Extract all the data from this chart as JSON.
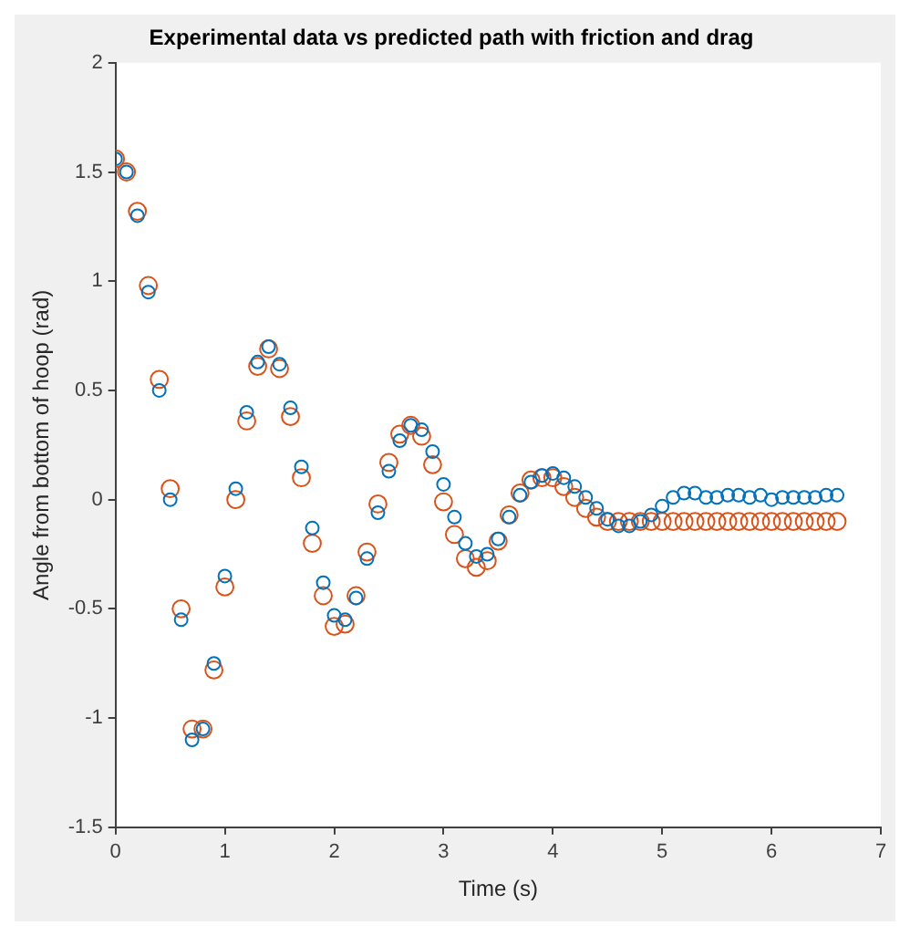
{
  "chart_data": {
    "type": "scatter",
    "title": "Experimental data vs predicted path with friction and drag",
    "xlabel": "Time (s)",
    "ylabel": "Angle from bottom of hoop (rad)",
    "x": [
      0,
      0.1,
      0.2,
      0.3,
      0.4,
      0.5,
      0.6,
      0.7,
      0.8,
      0.9,
      1.0,
      1.1,
      1.2,
      1.3,
      1.4,
      1.5,
      1.6,
      1.7,
      1.8,
      1.9,
      2.0,
      2.1,
      2.2,
      2.3,
      2.4,
      2.5,
      2.6,
      2.7,
      2.8,
      2.9,
      3.0,
      3.1,
      3.2,
      3.3,
      3.4,
      3.5,
      3.6,
      3.7,
      3.8,
      3.9,
      4.0,
      4.1,
      4.2,
      4.3,
      4.4,
      4.5,
      4.6,
      4.7,
      4.8,
      4.9,
      5.0,
      5.1,
      5.2,
      5.3,
      5.4,
      5.5,
      5.6,
      5.7,
      5.8,
      5.9,
      6.0,
      6.1,
      6.2,
      6.3,
      6.4,
      6.5,
      6.6
    ],
    "series": [
      {
        "color": "#0072bd",
        "values": [
          1.56,
          1.5,
          1.3,
          0.95,
          0.5,
          0.0,
          -0.55,
          -1.1,
          -1.05,
          -0.75,
          -0.35,
          0.05,
          0.4,
          0.63,
          0.7,
          0.62,
          0.42,
          0.15,
          -0.13,
          -0.38,
          -0.53,
          -0.55,
          -0.45,
          -0.27,
          -0.06,
          0.13,
          0.27,
          0.34,
          0.32,
          0.22,
          0.07,
          -0.08,
          -0.2,
          -0.26,
          -0.25,
          -0.18,
          -0.08,
          0.02,
          0.08,
          0.11,
          0.12,
          0.1,
          0.06,
          0.01,
          -0.04,
          -0.09,
          -0.12,
          -0.12,
          -0.1,
          -0.07,
          -0.03,
          0.01,
          0.03,
          0.03,
          0.01,
          0.01,
          0.02,
          0.02,
          0.01,
          0.02,
          0.0,
          0.01,
          0.01,
          0.01,
          0.01,
          0.02,
          0.02
        ]
      },
      {
        "color": "#d95319",
        "values": [
          1.56,
          1.5,
          1.32,
          0.98,
          0.55,
          0.05,
          -0.5,
          -1.05,
          -1.05,
          -0.78,
          -0.4,
          0.0,
          0.36,
          0.61,
          0.69,
          0.6,
          0.38,
          0.1,
          -0.2,
          -0.44,
          -0.58,
          -0.57,
          -0.44,
          -0.24,
          -0.02,
          0.17,
          0.3,
          0.34,
          0.29,
          0.16,
          -0.01,
          -0.16,
          -0.27,
          -0.31,
          -0.28,
          -0.19,
          -0.07,
          0.03,
          0.09,
          0.1,
          0.1,
          0.06,
          0.01,
          -0.04,
          -0.08,
          -0.1,
          -0.1,
          -0.1,
          -0.1,
          -0.1,
          -0.1,
          -0.1,
          -0.1,
          -0.1,
          -0.1,
          -0.1,
          -0.1,
          -0.1,
          -0.1,
          -0.1,
          -0.1,
          -0.1,
          -0.1,
          -0.1,
          -0.1,
          -0.1,
          -0.1
        ]
      }
    ],
    "xlim": [
      0,
      7
    ],
    "xticks": [
      0,
      1,
      2,
      3,
      4,
      5,
      6,
      7
    ],
    "ylim": [
      -1.5,
      2
    ],
    "yticks": [
      -1.5,
      -1,
      -0.5,
      0,
      0.5,
      1,
      1.5,
      2
    ],
    "grid": false,
    "legend": false,
    "marker": "circle"
  }
}
